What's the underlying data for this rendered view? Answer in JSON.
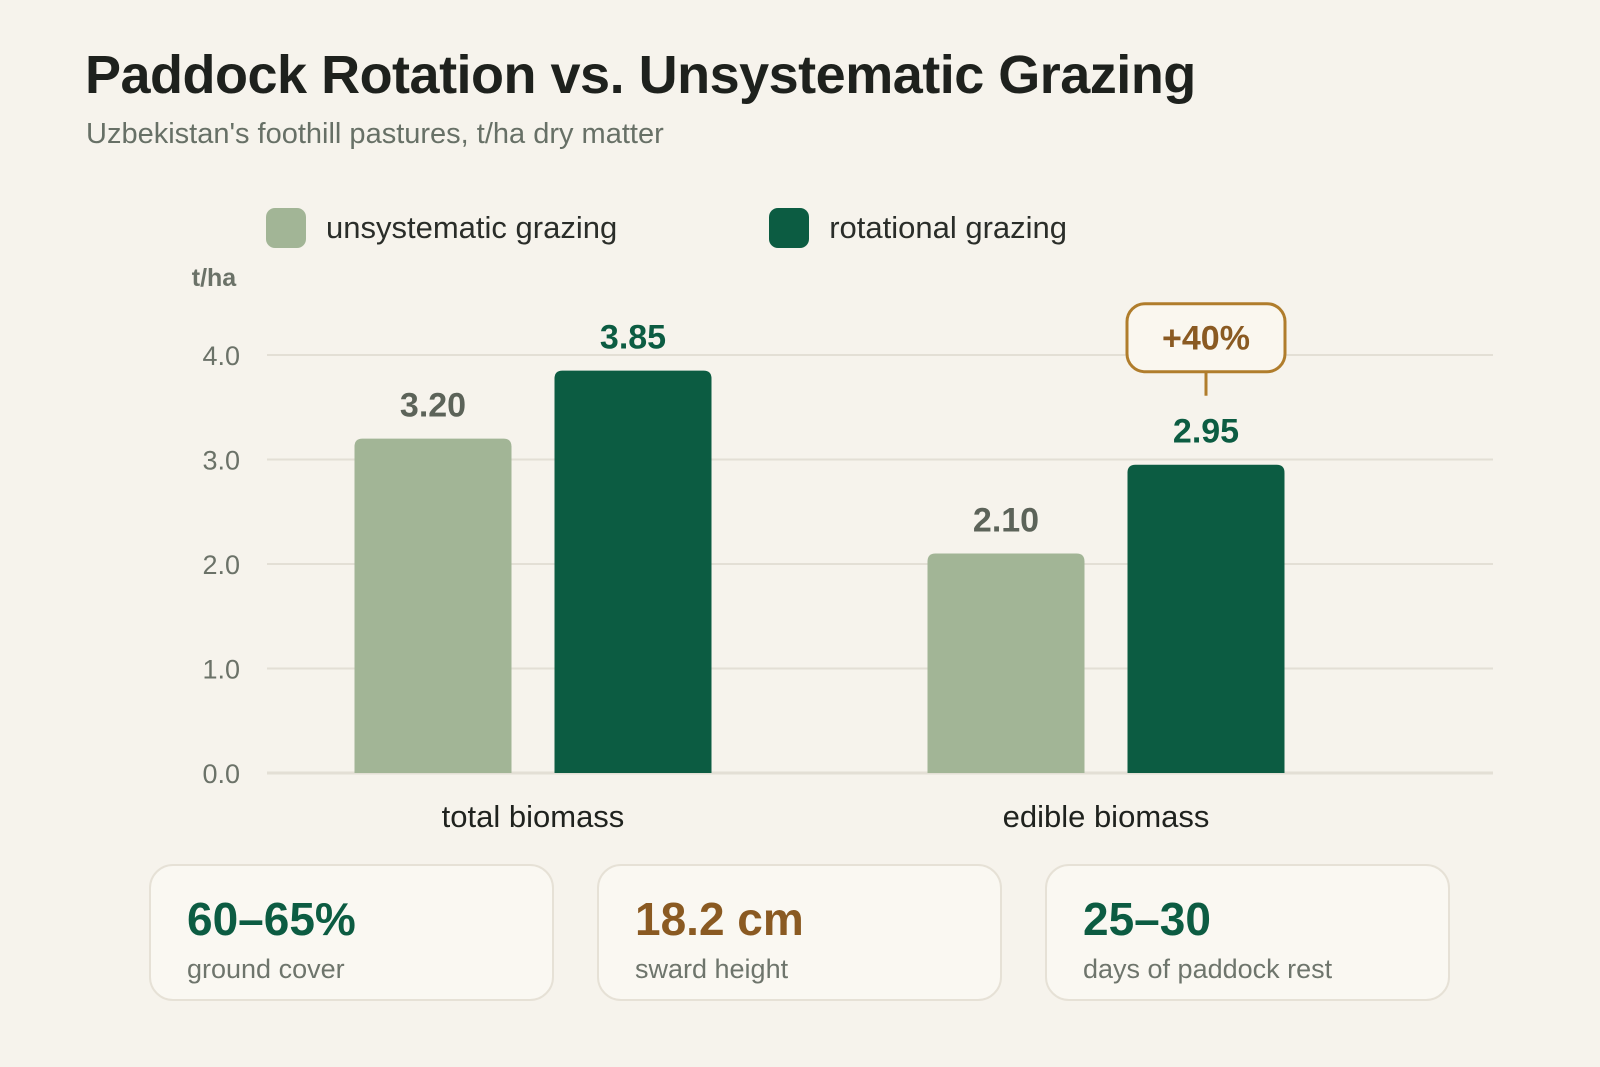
{
  "title": "Paddock Rotation vs. Unsystematic Grazing",
  "subtitle": "Uzbekistan's foothill pastures, t/ha dry matter",
  "colors": {
    "unsystematic": "#a2b596",
    "rotational": "#0c5c42",
    "callout": "#b07d2c",
    "gridline": "#e3dfd5",
    "axis_text": "#6b7268",
    "category_text": "#1f221e"
  },
  "chart_data": {
    "type": "bar",
    "categories": [
      "total biomass",
      "edible biomass"
    ],
    "series": [
      {
        "name": "unsystematic grazing",
        "values": [
          3.2,
          2.1
        ],
        "labels": [
          "3.20",
          "2.10"
        ]
      },
      {
        "name": "rotational grazing",
        "values": [
          3.85,
          2.95
        ],
        "labels": [
          "3.85",
          "2.95"
        ]
      }
    ],
    "ylabel": "t/ha",
    "ylim": [
      0,
      4.0
    ],
    "yticks": [
      "0.0",
      "1.0",
      "2.0",
      "3.0",
      "4.0"
    ],
    "grid": true,
    "legend": "top",
    "annotation": {
      "text": "+40%",
      "category": "edible biomass",
      "series": "rotational grazing"
    }
  },
  "stats": [
    {
      "value": "60–65%",
      "label": "ground cover",
      "color": "#0c5c42"
    },
    {
      "value": "18.2 cm",
      "label": "sward height",
      "color": "#8a5a22"
    },
    {
      "value": "25–30",
      "label": "days of paddock rest",
      "color": "#0c5c42"
    }
  ]
}
